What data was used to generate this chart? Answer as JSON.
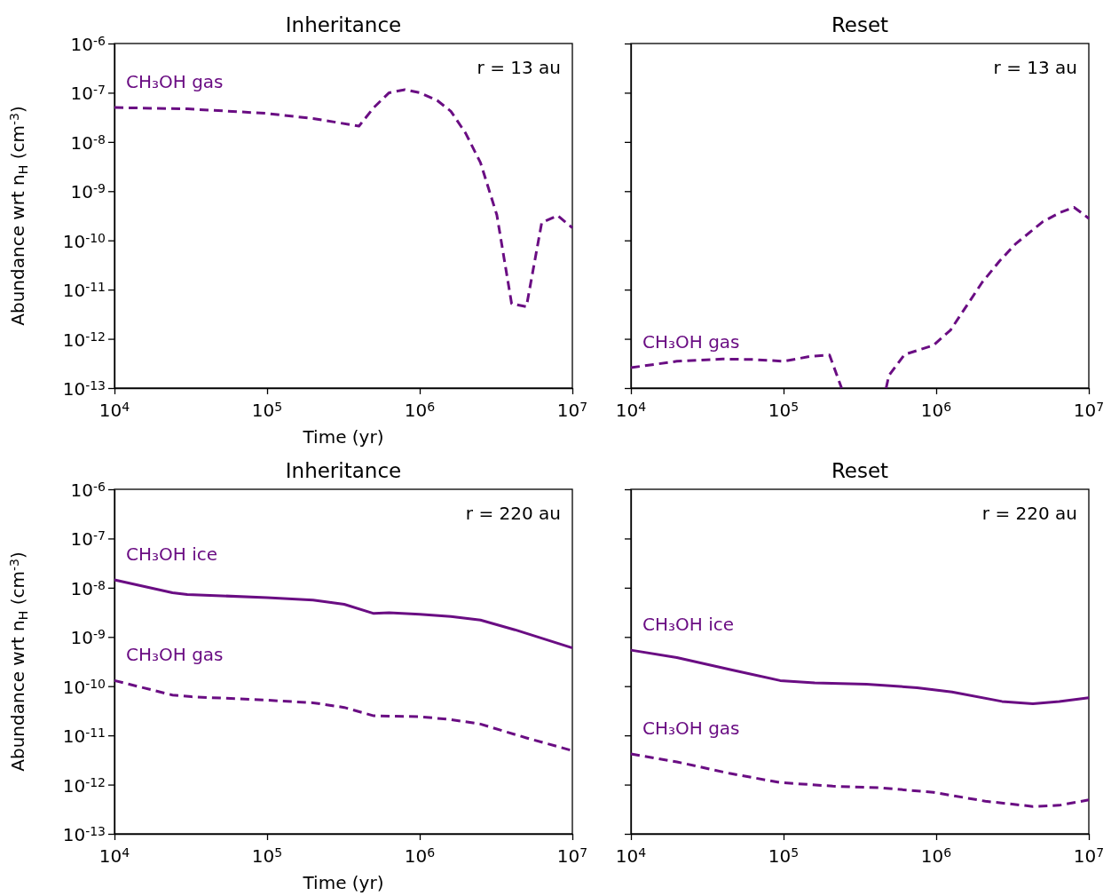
{
  "chart_data": [
    {
      "type": "line",
      "title": "Inheritance",
      "xlabel": "Time (yr)",
      "ylabel": "Abundance wrt n$_{H}$ (cm$^{-3}$)",
      "log": "xy",
      "xlim": [
        10000,
        10000000
      ],
      "ylim": [
        1e-13,
        1e-06
      ],
      "xticks": [
        {
          "value": 10000,
          "label": "10$^{4}$"
        },
        {
          "value": 100000,
          "label": "10$^{5}$"
        },
        {
          "value": 1000000,
          "label": "10$^{6}$"
        },
        {
          "value": 10000000,
          "label": "10$^{7}$"
        }
      ],
      "yticks": [
        {
          "value": 1e-13,
          "label": "10$^{-13}$"
        },
        {
          "value": 1e-12,
          "label": "10$^{-12}$"
        },
        {
          "value": 1e-11,
          "label": "10$^{-11}$"
        },
        {
          "value": 1e-10,
          "label": "10$^{-10}$"
        },
        {
          "value": 1e-09,
          "label": "10$^{-9}$"
        },
        {
          "value": 1e-08,
          "label": "10$^{-8}$"
        },
        {
          "value": 1e-07,
          "label": "10$^{-7}$"
        },
        {
          "value": 1e-06,
          "label": "10$^{-6}$"
        }
      ],
      "annotations": [
        "r = 13 au"
      ],
      "series": [
        {
          "name": "CH₃OH gas",
          "color": "#6a0d83",
          "line_style": "dashed",
          "x": [
            10000,
            30000,
            100000,
            200000,
            400000,
            500000,
            630000,
            800000,
            1000000,
            1300000,
            1600000,
            2000000,
            2500000,
            3200000,
            4000000,
            5000000,
            6300000,
            8000000,
            10000000
          ],
          "values": [
            5e-08,
            4.7e-08,
            3.8e-08,
            3e-08,
            2.1e-08,
            5e-08,
            1e-07,
            1.15e-07,
            1e-07,
            7e-08,
            4.2e-08,
            1.5e-08,
            3.8e-09,
            3.3e-10,
            5.2e-12,
            4.5e-12,
            2.3e-10,
            3.2e-10,
            1.8e-10
          ]
        }
      ]
    },
    {
      "type": "line",
      "title": "Reset",
      "log": "xy",
      "xlim": [
        10000,
        10000000
      ],
      "ylim": [
        1e-13,
        1e-06
      ],
      "tick_labels": "x",
      "xticks": [
        {
          "value": 10000,
          "label": "10$^{4}$"
        },
        {
          "value": 100000,
          "label": "10$^{5}$"
        },
        {
          "value": 1000000,
          "label": "10$^{6}$"
        },
        {
          "value": 10000000,
          "label": "10$^{7}$"
        }
      ],
      "yticks": [
        {
          "value": 1e-13,
          "label": null
        },
        {
          "value": 1e-12,
          "label": null
        },
        {
          "value": 1e-11,
          "label": null
        },
        {
          "value": 1e-10,
          "label": null
        },
        {
          "value": 1e-09,
          "label": null
        },
        {
          "value": 1e-08,
          "label": null
        },
        {
          "value": 1e-07,
          "label": null
        },
        {
          "value": 1e-06,
          "label": null
        }
      ],
      "annotations": [
        "r = 13 au"
      ],
      "series": [
        {
          "name": "CH₃OH gas",
          "color": "#6a0d83",
          "line_style": "dashed",
          "x": [
            10000,
            20000,
            40000,
            63000,
            100000,
            150000,
            200000,
            240000,
            350000,
            470000,
            490000,
            620000,
            960000,
            1240000,
            2000000,
            2600000,
            3300000,
            5000000,
            6500000,
            8000000,
            10000000
          ],
          "values": [
            2.6e-13,
            3.5e-13,
            3.9e-13,
            3.8e-13,
            3.5e-13,
            4.4e-13,
            4.7e-13,
            1e-13,
            null,
            1e-13,
            1.8e-13,
            4.8e-13,
            7.4e-13,
            1.5e-12,
            1.4e-11,
            3.8e-11,
            8.4e-11,
            2.4e-10,
            3.7e-10,
            4.7e-10,
            2.8e-10
          ]
        }
      ]
    },
    {
      "type": "line",
      "title": "Inheritance",
      "xlabel": "Time (yr)",
      "ylabel": "Abundance wrt n$_{H}$ (cm$^{-3}$)",
      "log": "xy",
      "xlim": [
        10000,
        10000000
      ],
      "ylim": [
        1e-13,
        1e-06
      ],
      "xticks": [
        {
          "value": 10000,
          "label": "10$^{4}$"
        },
        {
          "value": 100000,
          "label": "10$^{5}$"
        },
        {
          "value": 1000000,
          "label": "10$^{6}$"
        },
        {
          "value": 10000000,
          "label": "10$^{7}$"
        }
      ],
      "yticks": [
        {
          "value": 1e-13,
          "label": "10$^{-13}$"
        },
        {
          "value": 1e-12,
          "label": "10$^{-12}$"
        },
        {
          "value": 1e-11,
          "label": "10$^{-11}$"
        },
        {
          "value": 1e-10,
          "label": "10$^{-10}$"
        },
        {
          "value": 1e-09,
          "label": "10$^{-9}$"
        },
        {
          "value": 1e-08,
          "label": "10$^{-8}$"
        },
        {
          "value": 1e-07,
          "label": "10$^{-7}$"
        },
        {
          "value": 1e-06,
          "label": "10$^{-6}$"
        }
      ],
      "annotations": [
        "r = 220 au"
      ],
      "series": [
        {
          "name": "CH₃OH ice",
          "color": "#6a0d83",
          "line_style": "solid",
          "x": [
            10000,
            24000,
            30000,
            100000,
            200000,
            320000,
            500000,
            630000,
            1000000,
            1600000,
            2500000,
            4200000,
            10000000
          ],
          "values": [
            1.45e-08,
            7.9e-09,
            7.3e-09,
            6.3e-09,
            5.6e-09,
            4.6e-09,
            3e-09,
            3.1e-09,
            2.9e-09,
            2.6e-09,
            2.2e-09,
            1.4e-09,
            6e-10
          ]
        },
        {
          "name": "CH₃OH gas",
          "color": "#6a0d83",
          "line_style": "dashed",
          "x": [
            10000,
            24000,
            32000,
            100000,
            200000,
            320000,
            500000,
            1000000,
            1600000,
            2500000,
            5000000,
            10000000
          ],
          "values": [
            1.3e-10,
            6.6e-11,
            6.1e-11,
            5.2e-11,
            4.6e-11,
            3.7e-11,
            2.5e-11,
            2.4e-11,
            2.1e-11,
            1.7e-11,
            8.9e-12,
            4.9e-12
          ]
        }
      ]
    },
    {
      "type": "line",
      "title": "Reset",
      "log": "xy",
      "xlim": [
        10000,
        10000000
      ],
      "ylim": [
        1e-13,
        1e-06
      ],
      "tick_labels": "x",
      "xticks": [
        {
          "value": 10000,
          "label": "10$^{4}$"
        },
        {
          "value": 100000,
          "label": "10$^{5}$"
        },
        {
          "value": 1000000,
          "label": "10$^{6}$"
        },
        {
          "value": 10000000,
          "label": "10$^{7}$"
        }
      ],
      "yticks": [
        {
          "value": 1e-13,
          "label": null
        },
        {
          "value": 1e-12,
          "label": null
        },
        {
          "value": 1e-11,
          "label": null
        },
        {
          "value": 1e-10,
          "label": null
        },
        {
          "value": 1e-09,
          "label": null
        },
        {
          "value": 1e-08,
          "label": null
        },
        {
          "value": 1e-07,
          "label": null
        },
        {
          "value": 1e-06,
          "label": null
        }
      ],
      "annotations": [
        "r = 220 au"
      ],
      "series": [
        {
          "name": "CH₃OH ice",
          "color": "#6a0d83",
          "line_style": "solid",
          "x": [
            10000,
            20000,
            44000,
            95000,
            160000,
            350000,
            750000,
            1270000,
            2700000,
            4300000,
            6400000,
            10000000
          ],
          "values": [
            5.4e-10,
            3.8e-10,
            2.2e-10,
            1.3e-10,
            1.17e-10,
            1.1e-10,
            9.3e-11,
            7.6e-11,
            4.9e-11,
            4.4e-11,
            4.9e-11,
            5.8e-11
          ]
        },
        {
          "name": "CH₃OH gas",
          "color": "#6a0d83",
          "line_style": "dashed",
          "x": [
            10000,
            20000,
            44000,
            95000,
            210000,
            430000,
            960000,
            2100000,
            4300000,
            6400000,
            10000000
          ],
          "values": [
            4.2e-12,
            2.9e-12,
            1.7e-12,
            1.1e-12,
            9.3e-13,
            8.6e-13,
            7e-13,
            4.6e-13,
            3.6e-13,
            3.8e-13,
            4.9e-13
          ]
        }
      ]
    }
  ]
}
